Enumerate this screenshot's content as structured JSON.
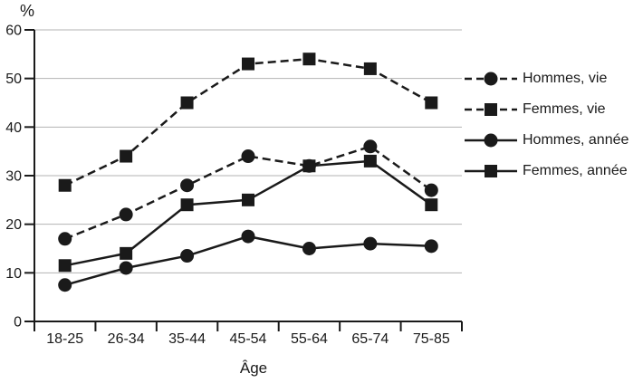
{
  "figure": {
    "background": "#ffffff"
  },
  "chart_data": {
    "type": "line",
    "title": "",
    "ylabel": "%",
    "xlabel": "Âge",
    "categories": [
      "18-25",
      "26-34",
      "35-44",
      "45-54",
      "55-64",
      "65-74",
      "75-85"
    ],
    "y_ticks": [
      0,
      10,
      20,
      30,
      40,
      50,
      60
    ],
    "ylim": [
      0,
      60
    ],
    "grid": "horizontal",
    "legend_position": "right",
    "series": [
      {
        "id": "hommes-vie",
        "name": "Hommes, vie",
        "marker": "circle",
        "line": "dashed",
        "values": [
          17,
          22,
          28,
          34,
          32,
          36,
          27
        ]
      },
      {
        "id": "femmes-vie",
        "name": "Femmes, vie",
        "marker": "square",
        "line": "dashed",
        "values": [
          28,
          34,
          45,
          53,
          54,
          52,
          45
        ]
      },
      {
        "id": "hommes-annee",
        "name": "Hommes, année",
        "marker": "circle",
        "line": "solid",
        "values": [
          7.5,
          11,
          13.5,
          17.5,
          15,
          16,
          15.5
        ]
      },
      {
        "id": "femmes-annee",
        "name": "Femmes, année",
        "marker": "square",
        "line": "solid",
        "values": [
          11.5,
          14,
          24,
          25,
          32,
          33,
          24
        ]
      }
    ],
    "colors": {
      "series": "#1a1a1a",
      "grid": "#b3b3b3",
      "text": "#1a1a1a",
      "background": "#ffffff"
    }
  }
}
